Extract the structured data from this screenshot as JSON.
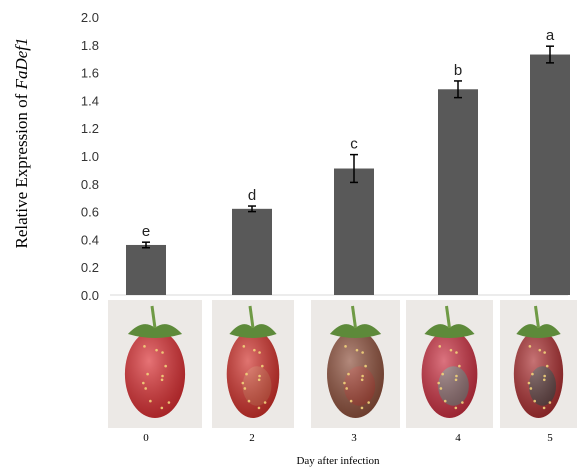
{
  "chart_data": {
    "type": "bar",
    "categories": [
      "0",
      "2",
      "3",
      "4",
      "5"
    ],
    "values": [
      0.36,
      0.62,
      0.91,
      1.48,
      1.73
    ],
    "errors": [
      0.02,
      0.02,
      0.1,
      0.06,
      0.06
    ],
    "significance_letters": [
      "e",
      "d",
      "c",
      "b",
      "a"
    ],
    "ylabel_prefix": "Relative Expression of ",
    "ylabel_gene": "FaDef1",
    "xlabel": "Day after infection",
    "ylim": [
      0,
      2.0
    ],
    "yticks": [
      "0.0",
      "0.2",
      "0.4",
      "0.6",
      "0.8",
      "1.0",
      "1.2",
      "1.4",
      "1.6",
      "1.8",
      "2.0"
    ],
    "grid": false,
    "bar_color": "#595959",
    "error_bar_color": "#000000",
    "photos": [
      {
        "day": "0",
        "condition": "healthy red strawberry",
        "fruit": "#d9282c",
        "spot": "#d9282c"
      },
      {
        "day": "2",
        "condition": "red strawberry, slight softening",
        "fruit": "#cf2a24",
        "spot": "#d4503a"
      },
      {
        "day": "3",
        "condition": "strawberry with brown rot",
        "fruit": "#8a4a35",
        "spot": "#a33a2a"
      },
      {
        "day": "4",
        "condition": "strawberry with grey rot area",
        "fruit": "#c8283a",
        "spot": "#7a6e6e"
      },
      {
        "day": "5",
        "condition": "heavily rotted strawberry",
        "fruit": "#a8282a",
        "spot": "#4a3a3a"
      }
    ]
  }
}
